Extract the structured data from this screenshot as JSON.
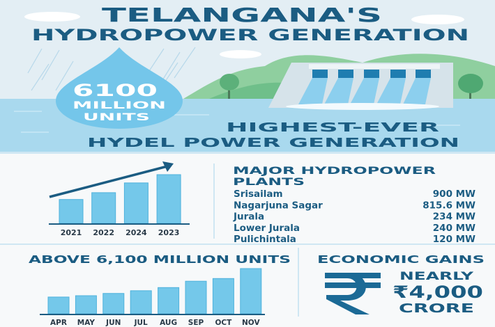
{
  "header": {
    "title_line1": "TELANGANA'S",
    "title_line2": "HYDROPOWER GENERATION"
  },
  "droplet": {
    "value": "6100",
    "unit_line1": "MILLION",
    "unit_line2": "UNITS"
  },
  "headline": {
    "line1": "HIGHEST-EVER",
    "line2": "HYDEL POWER GENERATION"
  },
  "plants": {
    "title_line1": "MAJOR HYDROPOWER",
    "title_line2": "PLANTS",
    "rows": [
      {
        "name": "Srisailam",
        "capacity": "900 MW"
      },
      {
        "name": "Nagarjuna Sagar",
        "capacity": "815.6 MW"
      },
      {
        "name": "Jurala",
        "capacity": "234 MW"
      },
      {
        "name": "Lower Jurala",
        "capacity": "240 MW"
      },
      {
        "name": "Pulichintala",
        "capacity": "120 MW"
      }
    ]
  },
  "monthly_title": "ABOVE 6,100 MILLION UNITS",
  "economic": {
    "title": "ECONOMIC GAINS",
    "icon": "rupee-icon",
    "line1": "NEARLY",
    "line2": "₹4,000",
    "line3": "CRORE"
  },
  "colors": {
    "primary": "#1b5c82",
    "bar": "#74c8ea",
    "bar_edge": "#4fb2dc",
    "sky": "#e3eef4",
    "water": "#a9d9ee"
  },
  "chart_data": [
    {
      "type": "bar",
      "categories": [
        "2021",
        "2022",
        "2024",
        "2023"
      ],
      "values": [
        49,
        63,
        83,
        100
      ],
      "trend_arrow": "up",
      "grid": false,
      "axis_labels": "none"
    },
    {
      "type": "bar",
      "categories": [
        "APR",
        "MAY",
        "JUN",
        "JUL",
        "AUG",
        "SEP",
        "OCT",
        "NOV"
      ],
      "values": [
        37,
        40,
        45,
        51,
        58,
        72,
        78,
        100
      ],
      "grid": false,
      "axis_labels": "none"
    }
  ]
}
